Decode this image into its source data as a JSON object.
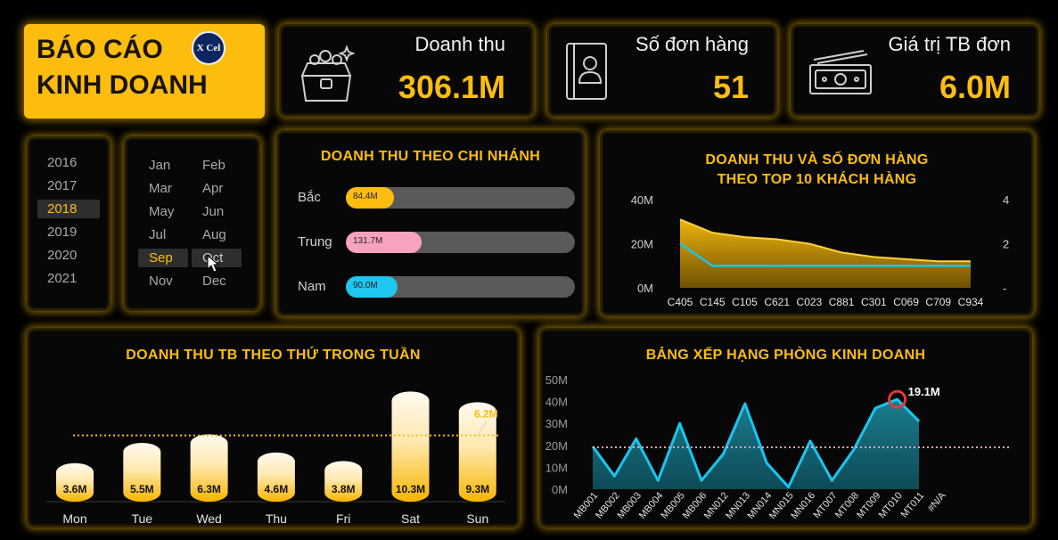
{
  "header": {
    "title_line1": "BÁO CÁO",
    "title_line2": "KINH DOANH",
    "logo_text": "X Cel"
  },
  "kpis": [
    {
      "label": "Doanh thu",
      "value": "306.1M",
      "icon": "treasure-chest-icon"
    },
    {
      "label": "Số đơn hàng",
      "value": "51",
      "icon": "contact-book-icon"
    },
    {
      "label": "Giá trị TB đơn",
      "value": "6.0M",
      "icon": "banknote-icon"
    }
  ],
  "year_slicer": {
    "items": [
      "2016",
      "2017",
      "2018",
      "2019",
      "2020",
      "2021"
    ],
    "selected": "2018"
  },
  "month_slicer": {
    "items": [
      "Jan",
      "Feb",
      "Mar",
      "Apr",
      "May",
      "Jun",
      "Jul",
      "Aug",
      "Sep",
      "Oct",
      "Nov",
      "Dec"
    ],
    "selected": "Sep",
    "hovered": "Oct"
  },
  "colors": {
    "accent": "#fdbd0f",
    "bac": "#fdbd0f",
    "trung": "#f7a3bf",
    "nam": "#1fc6ef",
    "line_cyan": "#19c6ef",
    "track": "#5a5a5a"
  },
  "chart_data": [
    {
      "type": "bar",
      "title": "DOANH THU THEO CHI NHÁNH",
      "categories": [
        "Bắc",
        "Trung",
        "Nam"
      ],
      "values": [
        84.4,
        131.7,
        90.0
      ],
      "value_labels": [
        "84.4M",
        "131.7M",
        "90.0M"
      ],
      "orientation": "horizontal"
    },
    {
      "type": "area",
      "title_line1": "DOANH THU VÀ SỐ ĐƠN HÀNG",
      "title_line2": "THEO TOP 10 KHÁCH HÀNG",
      "categories": [
        "C405",
        "C145",
        "C105",
        "C621",
        "C023",
        "C881",
        "C301",
        "C069",
        "C709",
        "C934"
      ],
      "series": [
        {
          "values": [
            31,
            25,
            23,
            22,
            20,
            16,
            14,
            13,
            12,
            12
          ],
          "axis": "left"
        },
        {
          "values": [
            2.0,
            1.0,
            1.0,
            1.0,
            1.0,
            1.0,
            1.0,
            1.0,
            1.0,
            1.0
          ],
          "axis": "right"
        }
      ],
      "ylim_left": [
        0,
        40
      ],
      "ylim_right": [
        0,
        4
      ],
      "left_ticks": [
        "0M",
        "20M",
        "40M"
      ],
      "right_ticks": [
        "-",
        "2",
        "4"
      ]
    },
    {
      "type": "bar",
      "title": "DOANH THU TB THEO THỨ TRONG TUẦN",
      "categories": [
        "Mon",
        "Tue",
        "Wed",
        "Thu",
        "Fri",
        "Sat",
        "Sun"
      ],
      "values": [
        3.6,
        5.5,
        6.3,
        4.6,
        3.8,
        10.3,
        9.3
      ],
      "value_labels": [
        "3.6M",
        "5.5M",
        "6.3M",
        "4.6M",
        "3.8M",
        "10.3M",
        "9.3M"
      ],
      "average_value": 6.2,
      "average_label": "6.2M",
      "ylim": [
        0,
        10.5
      ]
    },
    {
      "type": "area",
      "title": "BẢNG XẾP HẠNG PHÒNG KINH DOANH",
      "categories": [
        "MB001",
        "MB002",
        "MB003",
        "MB004",
        "MB005",
        "MB006",
        "MN012",
        "MN013",
        "MN014",
        "MN015",
        "MN016",
        "MT007",
        "MT008",
        "MT009",
        "MT010",
        "MT011",
        "#N/A"
      ],
      "values": [
        19.5,
        6,
        23,
        4,
        30,
        4,
        16,
        39,
        12,
        1,
        22,
        4,
        18,
        37,
        41,
        31,
        null
      ],
      "ylim": [
        0,
        50
      ],
      "y_ticks": [
        "0M",
        "10M",
        "20M",
        "30M",
        "40M",
        "50M"
      ],
      "average_value": 19.1,
      "highlight_label": "19.1M",
      "highlight_index": 14
    }
  ]
}
